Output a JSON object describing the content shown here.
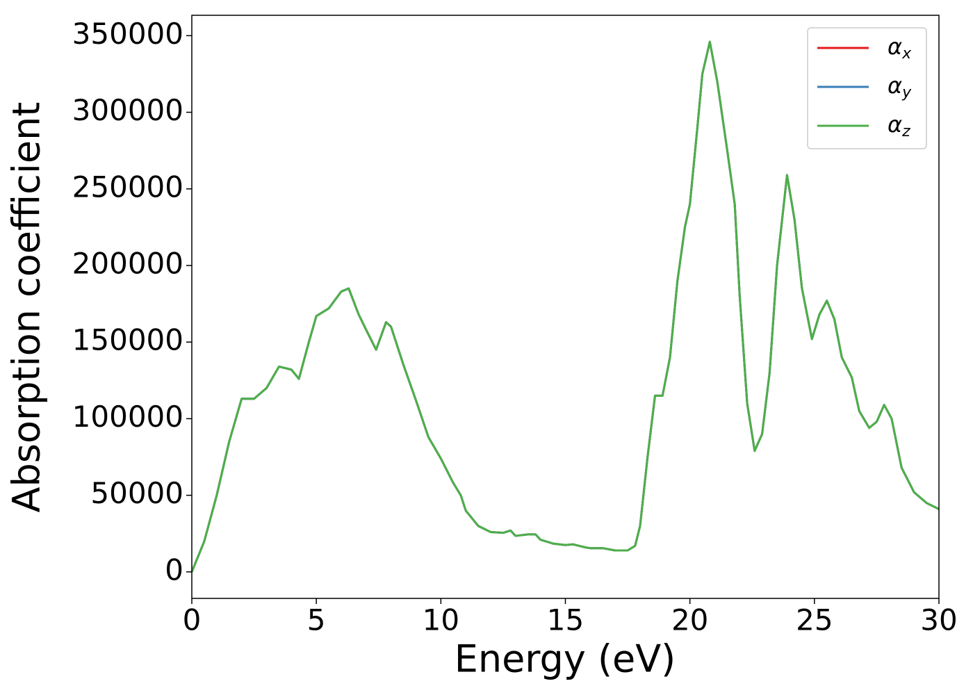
{
  "chart_data": {
    "type": "line",
    "x_label": "Energy (eV)",
    "y_label": "Absorption coefficient",
    "xlim": [
      0,
      30
    ],
    "ylim": [
      -17300,
      363300
    ],
    "xticks": [
      0,
      5,
      10,
      15,
      20,
      25,
      30
    ],
    "yticks": [
      0,
      50000,
      100000,
      150000,
      200000,
      250000,
      300000,
      350000
    ],
    "legend": "upper right",
    "x": [
      0,
      0.5,
      1,
      1.5,
      2,
      2.5,
      3,
      3.5,
      4,
      4.3,
      4.7,
      5,
      5.5,
      6,
      6.3,
      6.7,
      7,
      7.4,
      7.8,
      8,
      8.5,
      9,
      9.5,
      10,
      10.5,
      10.8,
      11,
      11.5,
      12,
      12.5,
      12.8,
      13,
      13.5,
      13.8,
      14,
      14.5,
      15,
      15.3,
      15.8,
      16,
      16.5,
      17,
      17.5,
      17.8,
      18,
      18.3,
      18.6,
      18.9,
      19.2,
      19.5,
      19.8,
      20,
      20.3,
      20.5,
      20.8,
      21.1,
      21.5,
      21.8,
      22,
      22.3,
      22.6,
      22.9,
      23.2,
      23.5,
      23.9,
      24.2,
      24.5,
      24.9,
      25.2,
      25.5,
      25.8,
      26.1,
      26.5,
      26.8,
      27.2,
      27.5,
      27.8,
      28.1,
      28.5,
      29,
      29.5,
      30
    ],
    "series": [
      {
        "name": "αx",
        "color": "#e41a1c",
        "values": [
          0,
          20000,
          50000,
          85000,
          113000,
          113000,
          120000,
          134000,
          132000,
          126000,
          150000,
          167000,
          172000,
          183000,
          185000,
          168000,
          158000,
          145000,
          163000,
          160000,
          135000,
          112000,
          88000,
          74000,
          58000,
          50000,
          40000,
          30000,
          26000,
          25500,
          27000,
          23500,
          24500,
          24500,
          21000,
          18500,
          17500,
          18000,
          16000,
          15500,
          15500,
          14000,
          14000,
          17000,
          30000,
          75000,
          115000,
          115000,
          140000,
          190000,
          225000,
          240000,
          290000,
          325000,
          346000,
          320000,
          275000,
          240000,
          180000,
          110000,
          79000,
          90000,
          130000,
          200000,
          259000,
          230000,
          185000,
          152000,
          168000,
          177000,
          165000,
          140000,
          127000,
          105000,
          94000,
          98000,
          109000,
          100000,
          68000,
          52000,
          45000,
          41000
        ]
      },
      {
        "name": "αy",
        "color": "#377eb8",
        "values": [
          0,
          20000,
          50000,
          85000,
          113000,
          113000,
          120000,
          134000,
          132000,
          126000,
          150000,
          167000,
          172000,
          183000,
          185000,
          168000,
          158000,
          145000,
          163000,
          160000,
          135000,
          112000,
          88000,
          74000,
          58000,
          50000,
          40000,
          30000,
          26000,
          25500,
          27000,
          23500,
          24500,
          24500,
          21000,
          18500,
          17500,
          18000,
          16000,
          15500,
          15500,
          14000,
          14000,
          17000,
          30000,
          75000,
          115000,
          115000,
          140000,
          190000,
          225000,
          240000,
          290000,
          325000,
          346000,
          320000,
          275000,
          240000,
          180000,
          110000,
          79000,
          90000,
          130000,
          200000,
          259000,
          230000,
          185000,
          152000,
          168000,
          177000,
          165000,
          140000,
          127000,
          105000,
          94000,
          98000,
          109000,
          100000,
          68000,
          52000,
          45000,
          41000
        ]
      },
      {
        "name": "αz",
        "color": "#4daf4a",
        "values": [
          0,
          20000,
          50000,
          85000,
          113000,
          113000,
          120000,
          134000,
          132000,
          126000,
          150000,
          167000,
          172000,
          183000,
          185000,
          168000,
          158000,
          145000,
          163000,
          160000,
          135000,
          112000,
          88000,
          74000,
          58000,
          50000,
          40000,
          30000,
          26000,
          25500,
          27000,
          23500,
          24500,
          24500,
          21000,
          18500,
          17500,
          18000,
          16000,
          15500,
          15500,
          14000,
          14000,
          17000,
          30000,
          75000,
          115000,
          115000,
          140000,
          190000,
          225000,
          240000,
          290000,
          325000,
          346000,
          320000,
          275000,
          240000,
          180000,
          110000,
          79000,
          90000,
          130000,
          200000,
          259000,
          230000,
          185000,
          152000,
          168000,
          177000,
          165000,
          140000,
          127000,
          105000,
          94000,
          98000,
          109000,
          100000,
          68000,
          52000,
          45000,
          41000
        ]
      }
    ]
  }
}
